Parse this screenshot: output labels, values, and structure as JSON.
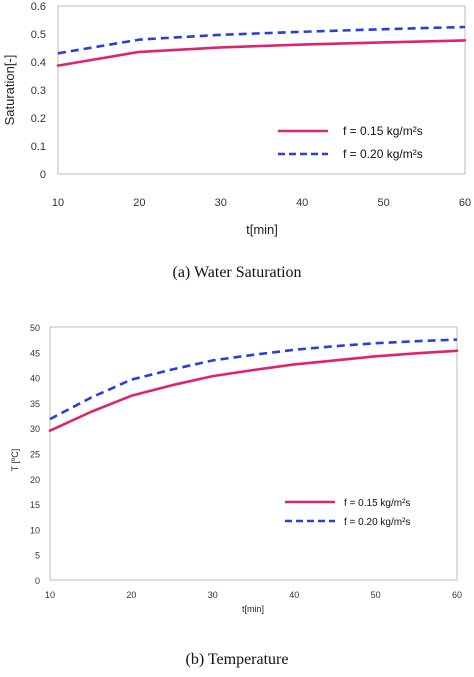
{
  "chart_data": [
    {
      "type": "line",
      "caption": "(a) Water Saturation",
      "xlabel": "t[min]",
      "ylabel": "Saturation[-]",
      "xlim": [
        10,
        60
      ],
      "ylim": [
        0,
        0.6
      ],
      "xticks": [
        10,
        20,
        30,
        40,
        50,
        60
      ],
      "xtick_labels": [
        "10",
        "20",
        "30",
        "40",
        "50",
        "60"
      ],
      "yticks": [
        0,
        0.1,
        0.2,
        0.3,
        0.4,
        0.5,
        0.6
      ],
      "ytick_labels": [
        "0",
        "0.1",
        "0.2",
        "0.3",
        "0.4",
        "0.5",
        "0.6"
      ],
      "grid": false,
      "legend_position": "bottom-right",
      "x": [
        10,
        20,
        30,
        40,
        50,
        60
      ],
      "series": [
        {
          "name": "f = 0.15 kg/m²s",
          "color": "#e0236e",
          "dash": "solid",
          "values": [
            0.387,
            0.436,
            0.452,
            0.462,
            0.47,
            0.477
          ]
        },
        {
          "name": "f = 0.20 kg/m²s",
          "color": "#2b3fd6",
          "dash": "dashed",
          "values": [
            0.431,
            0.48,
            0.497,
            0.508,
            0.517,
            0.525
          ]
        }
      ]
    },
    {
      "type": "line",
      "caption": "(b) Temperature",
      "xlabel": "t[min]",
      "ylabel": "T [ºC]",
      "xlim": [
        10,
        60
      ],
      "ylim": [
        0,
        50
      ],
      "xticks": [
        10,
        20,
        30,
        40,
        50,
        60
      ],
      "xtick_labels": [
        "10",
        "20",
        "30",
        "40",
        "50",
        "60"
      ],
      "yticks": [
        0,
        5,
        10,
        15,
        20,
        25,
        30,
        35,
        40,
        45,
        50
      ],
      "ytick_labels": [
        "0",
        "5",
        "10",
        "15",
        "20",
        "25",
        "30",
        "35",
        "40",
        "45",
        "50"
      ],
      "grid": false,
      "legend_position": "bottom-right",
      "x": [
        10,
        15,
        20,
        25,
        30,
        35,
        40,
        45,
        50,
        55,
        60
      ],
      "series": [
        {
          "name": "f = 0.15 kg/m²s",
          "color": "#e0236e",
          "dash": "solid",
          "values": [
            29.5,
            33.2,
            36.4,
            38.5,
            40.3,
            41.5,
            42.6,
            43.4,
            44.2,
            44.8,
            45.3
          ]
        },
        {
          "name": "f = 0.20 kg/m²s",
          "color": "#2b3fd6",
          "dash": "dashed",
          "values": [
            31.8,
            36.0,
            39.6,
            41.6,
            43.4,
            44.5,
            45.5,
            46.2,
            46.8,
            47.2,
            47.5
          ]
        }
      ]
    }
  ]
}
